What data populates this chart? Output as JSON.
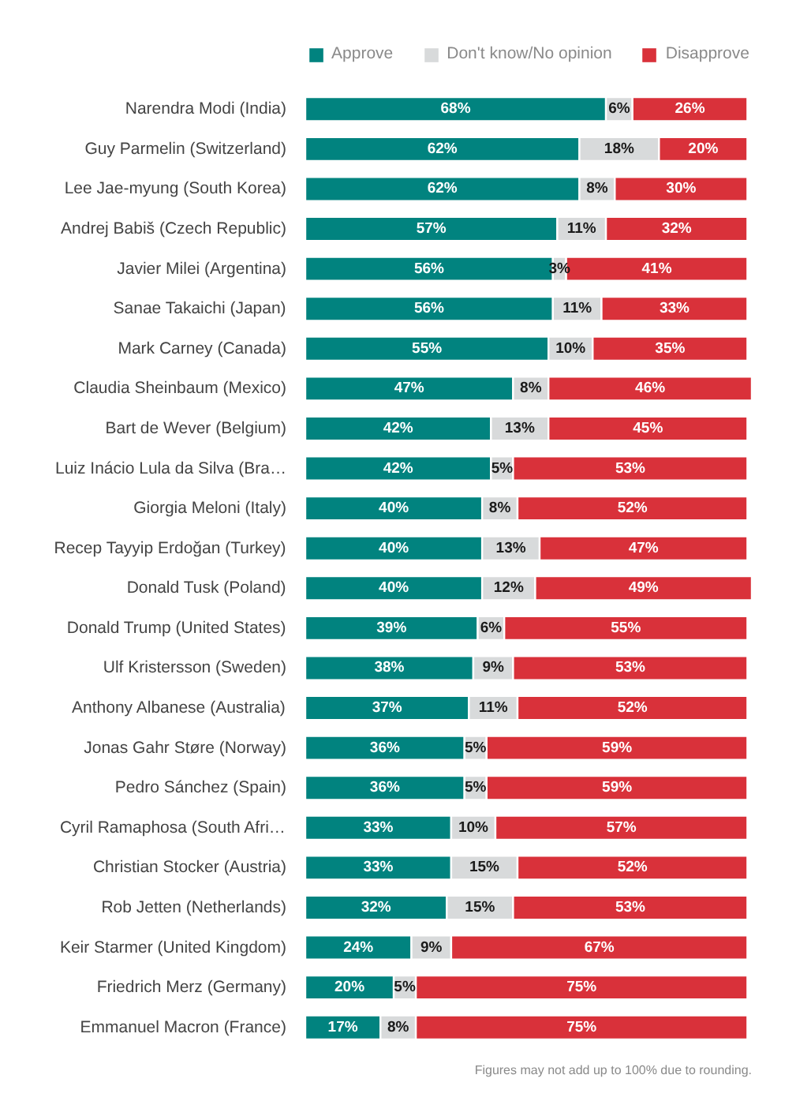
{
  "chart_data": {
    "type": "bar",
    "orientation": "horizontal",
    "stacked": true,
    "legend": "top",
    "grid": false,
    "tick_labels": "y",
    "categories": [
      "Narendra Modi (India)",
      "Guy Parmelin (Switzerland)",
      "Lee Jae-myung (South Korea)",
      "Andrej Babiš (Czech Republic)",
      "Javier Milei (Argentina)",
      "Sanae Takaichi (Japan)",
      "Mark Carney (Canada)",
      "Claudia Sheinbaum (Mexico)",
      "Bart de Wever (Belgium)",
      "Luiz Inácio Lula da Silva (Bra…",
      "Giorgia Meloni (Italy)",
      "Recep Tayyip Erdoğan (Turkey)",
      "Donald Tusk (Poland)",
      "Donald Trump (United States)",
      "Ulf Kristersson (Sweden)",
      "Anthony Albanese (Australia)",
      "Jonas Gahr Støre (Norway)",
      "Pedro Sánchez (Spain)",
      "Cyril Ramaphosa (South Afri…",
      "Christian Stocker (Austria)",
      "Rob Jetten (Netherlands)",
      "Keir Starmer (United Kingdom)",
      "Friedrich Merz (Germany)",
      "Emmanuel Macron (France)"
    ],
    "series": [
      {
        "name": "Approve",
        "color": "#01837f",
        "values": [
          68,
          62,
          62,
          57,
          56,
          56,
          55,
          47,
          42,
          42,
          40,
          40,
          40,
          39,
          38,
          37,
          36,
          36,
          33,
          33,
          32,
          24,
          20,
          17
        ],
        "value_labels": [
          "68%",
          "62%",
          "62%",
          "57%",
          "56%",
          "56%",
          "55%",
          "47%",
          "42%",
          "42%",
          "40%",
          "40%",
          "40%",
          "39%",
          "38%",
          "37%",
          "36%",
          "36%",
          "33%",
          "33%",
          "32%",
          "24%",
          "20%",
          "17%"
        ]
      },
      {
        "name": "Don't know/No opinion",
        "color": "#d8dadb",
        "values": [
          6,
          18,
          8,
          11,
          3,
          11,
          10,
          8,
          13,
          5,
          8,
          13,
          12,
          6,
          9,
          11,
          5,
          5,
          10,
          15,
          15,
          9,
          5,
          8
        ],
        "value_labels": [
          "6%",
          "18%",
          "8%",
          "11%",
          "3%",
          "11%",
          "10%",
          "8%",
          "13%",
          "5%",
          "8%",
          "13%",
          "12%",
          "6%",
          "9%",
          "11%",
          "5%",
          "5%",
          "10%",
          "15%",
          "15%",
          "9%",
          "5%",
          "8%"
        ]
      },
      {
        "name": "Disapprove",
        "color": "#d9313a",
        "values": [
          26,
          20,
          30,
          32,
          41,
          33,
          35,
          46,
          45,
          53,
          52,
          47,
          49,
          55,
          53,
          52,
          59,
          59,
          57,
          52,
          53,
          67,
          75,
          75
        ],
        "value_labels": [
          "26%",
          "20%",
          "30%",
          "32%",
          "41%",
          "33%",
          "35%",
          "46%",
          "45%",
          "53%",
          "52%",
          "47%",
          "49%",
          "55%",
          "53%",
          "52%",
          "59%",
          "59%",
          "57%",
          "52%",
          "53%",
          "67%",
          "75%",
          "75%"
        ]
      }
    ],
    "annotations": [
      "Figures may not add up to 100% due to rounding."
    ]
  }
}
